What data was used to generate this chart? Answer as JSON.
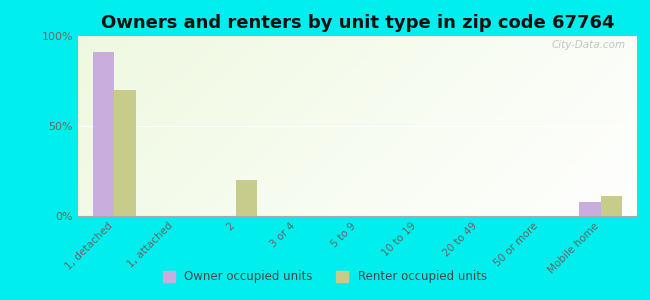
{
  "title": "Owners and renters by unit type in zip code 67764",
  "categories": [
    "1, detached",
    "1, attached",
    "2",
    "3 or 4",
    "5 to 9",
    "10 to 19",
    "20 to 49",
    "50 or more",
    "Mobile home"
  ],
  "owner_values": [
    91,
    0,
    0,
    0,
    0,
    0,
    0,
    0,
    8
  ],
  "renter_values": [
    70,
    0,
    20,
    0,
    0,
    0,
    0,
    0,
    11
  ],
  "owner_color": "#c9aedd",
  "renter_color": "#c8cc8a",
  "outer_background": "#00eeee",
  "ylim": [
    0,
    100
  ],
  "yticks": [
    0,
    50,
    100
  ],
  "ytick_labels": [
    "0%",
    "50%",
    "100%"
  ],
  "bar_width": 0.35,
  "title_fontsize": 13,
  "watermark": "City-Data.com"
}
